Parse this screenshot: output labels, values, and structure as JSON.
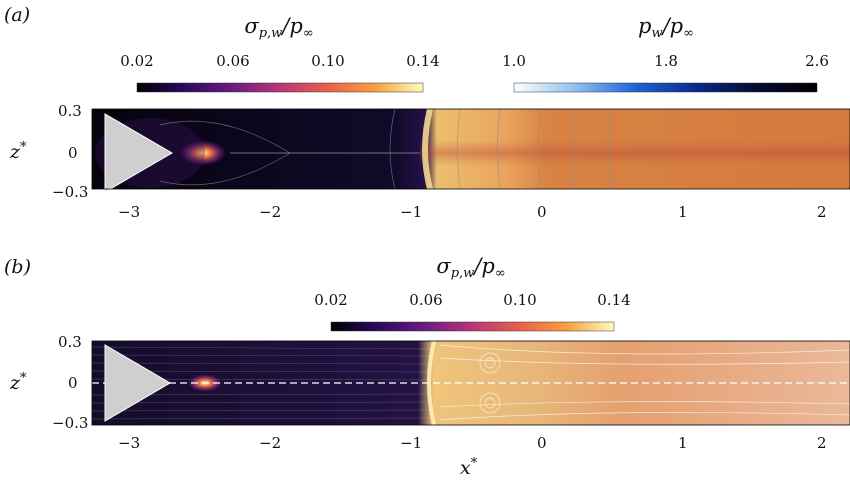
{
  "panels": [
    {
      "letter": "(a)",
      "colorbars": [
        {
          "name": "sigma",
          "label_main": "σ",
          "label_sub": "p,w",
          "label_tail": "/p",
          "label_tail_sub": "∞",
          "ticks": [
            "0.02",
            "0.06",
            "0.10",
            "0.14"
          ],
          "range": [
            0.02,
            0.14
          ],
          "colors": [
            "#000004",
            "#2a0a5e",
            "#6a1c81",
            "#b7377a",
            "#e8604d",
            "#f9a03f",
            "#fcfdbf"
          ]
        },
        {
          "name": "pressure",
          "label_main": "p",
          "label_sub": "w",
          "label_tail": "/p",
          "label_tail_sub": "∞",
          "ticks": [
            "1.0",
            "1.8",
            "2.6"
          ],
          "range": [
            1.0,
            2.6
          ],
          "colors": [
            "#ffffff",
            "#8ec2f2",
            "#1f63d6",
            "#0a2a8a",
            "#060a30",
            "#000000"
          ]
        }
      ],
      "x_ticks": [
        "−3",
        "−2",
        "−1",
        "0",
        "1",
        "2"
      ],
      "y_ticks": [
        "0.3",
        "0",
        "−0.3"
      ],
      "ylabel": "z",
      "ylabel_sup": "*"
    },
    {
      "letter": "(b)",
      "colorbars": [
        {
          "name": "sigma",
          "label_main": "σ",
          "label_sub": "p,w",
          "label_tail": "/p",
          "label_tail_sub": "∞",
          "ticks": [
            "0.02",
            "0.06",
            "0.10",
            "0.14"
          ],
          "range": [
            0.02,
            0.14
          ],
          "colors": [
            "#000004",
            "#2a0a5e",
            "#6a1c81",
            "#b7377a",
            "#e8604d",
            "#f9a03f",
            "#fcfdbf"
          ]
        }
      ],
      "x_ticks": [
        "−3",
        "−2",
        "−1",
        "0",
        "1",
        "2"
      ],
      "y_ticks": [
        "0.3",
        "0",
        "−0.3"
      ],
      "ylabel": "z",
      "ylabel_sup": "*",
      "xlabel": "x",
      "xlabel_sup": "*"
    }
  ],
  "axes": {
    "x_range": [
      -3.25,
      2.2
    ],
    "z_range": [
      -0.3,
      0.3
    ]
  }
}
